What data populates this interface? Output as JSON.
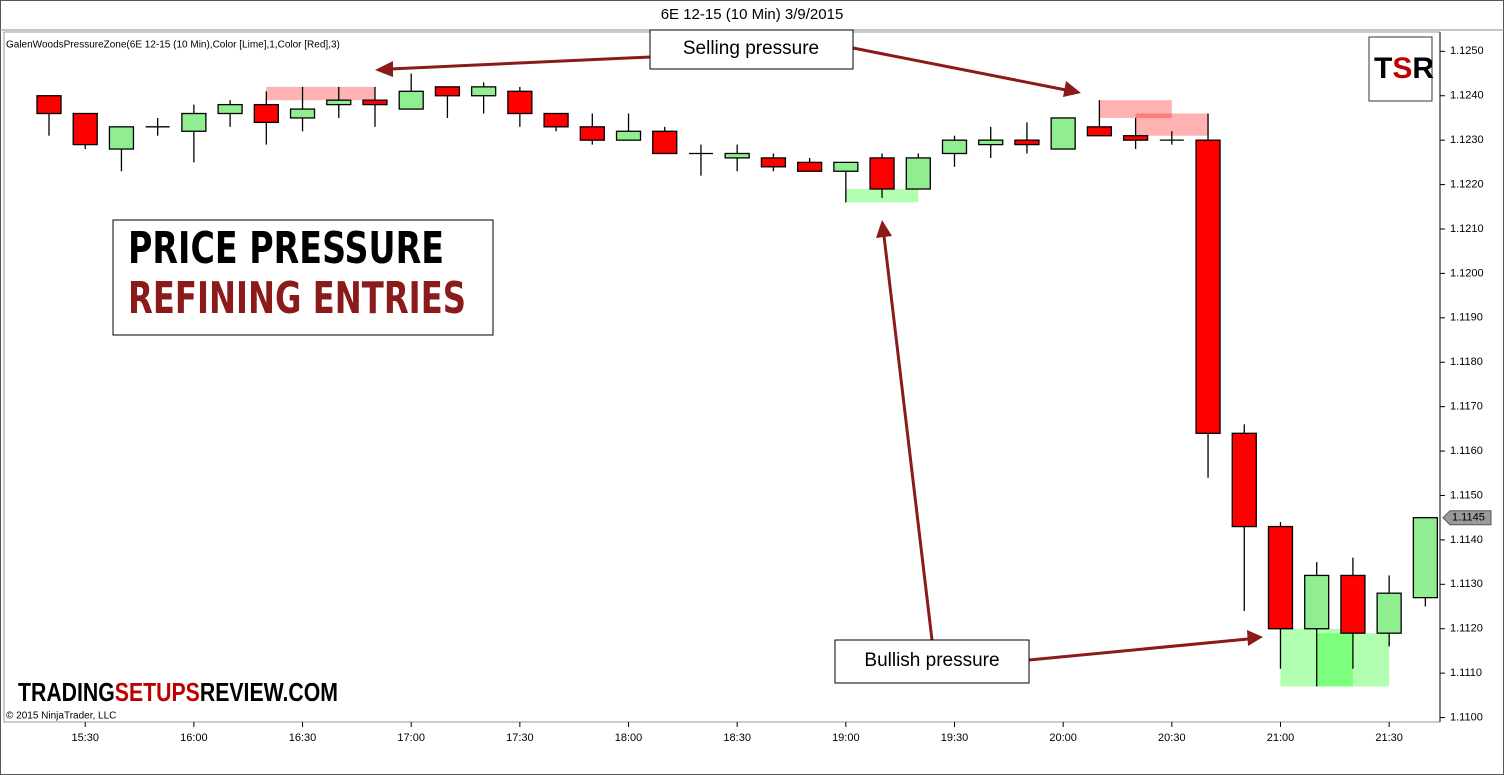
{
  "chart_data": {
    "type": "candlestick",
    "title": "6E 12-15 (10 Min)  3/9/2015",
    "indicator_label": "GalenWoodsPressureZone(6E 12-15 (10 Min),Color [Lime],1,Color [Red],3)",
    "annotations": [
      "Selling pressure",
      "Bullish pressure"
    ],
    "headline": [
      "PRICE PRESSURE",
      "REFINING ENTRIES"
    ],
    "logo": [
      "T",
      "S",
      "R"
    ],
    "site": [
      "TRADING",
      "SETUPS",
      "REVIEW.COM"
    ],
    "copyright": "© 2015 NinjaTrader, LLC",
    "categories": [
      null,
      "15:30",
      null,
      null,
      "16:00",
      null,
      null,
      "16:30",
      null,
      null,
      "17:00",
      null,
      null,
      "17:30",
      null,
      null,
      "18:00",
      null,
      null,
      "18:30",
      null,
      null,
      "19:00",
      null,
      null,
      "19:30",
      null,
      null,
      "20:00",
      null,
      null,
      "20:30",
      null,
      null,
      "21:00",
      null,
      null,
      "21:30",
      null
    ],
    "open": [
      1.124,
      1.1236,
      1.1228,
      1.1233,
      1.1232,
      1.1236,
      1.1238,
      1.1235,
      1.1238,
      1.1239,
      1.1237,
      1.1242,
      1.124,
      1.1241,
      1.1236,
      1.1233,
      1.123,
      1.1232,
      1.1227,
      1.1226,
      1.1226,
      1.1225,
      1.1223,
      1.1226,
      1.1219,
      1.1227,
      1.1229,
      1.123,
      1.1228,
      1.1233,
      1.1231,
      1.123,
      1.123,
      1.1164,
      1.1143,
      1.112,
      1.1132,
      1.1119,
      1.1127
    ],
    "high": [
      1.124,
      1.1236,
      1.1233,
      1.1235,
      1.1238,
      1.1239,
      1.1241,
      1.1242,
      1.1242,
      1.1242,
      1.1245,
      1.1242,
      1.1243,
      1.1242,
      1.1236,
      1.1236,
      1.1236,
      1.1233,
      1.1229,
      1.1229,
      1.1227,
      1.1226,
      1.1225,
      1.1227,
      1.1227,
      1.1231,
      1.1233,
      1.1234,
      1.1235,
      1.1239,
      1.1235,
      1.1232,
      1.1236,
      1.1166,
      1.1144,
      1.1135,
      1.1136,
      1.1132,
      1.1145
    ],
    "low": [
      1.1231,
      1.1228,
      1.1223,
      1.1231,
      1.1225,
      1.1233,
      1.1229,
      1.1232,
      1.1235,
      1.1233,
      1.1237,
      1.1235,
      1.1236,
      1.1233,
      1.1232,
      1.1229,
      1.123,
      1.1227,
      1.1222,
      1.1223,
      1.1223,
      1.1223,
      1.1216,
      1.1217,
      1.1219,
      1.1224,
      1.1226,
      1.1227,
      1.1228,
      1.1231,
      1.1228,
      1.1229,
      1.1154,
      1.1124,
      1.1111,
      1.1107,
      1.1111,
      1.1116,
      1.1125
    ],
    "close": [
      1.1236,
      1.1229,
      1.1233,
      1.1233,
      1.1236,
      1.1238,
      1.1234,
      1.1237,
      1.1239,
      1.1238,
      1.1241,
      1.124,
      1.1242,
      1.1236,
      1.1233,
      1.123,
      1.1232,
      1.1227,
      1.1227,
      1.1227,
      1.1224,
      1.1223,
      1.1225,
      1.1219,
      1.1226,
      1.123,
      1.123,
      1.1229,
      1.1235,
      1.1231,
      1.123,
      1.123,
      1.1164,
      1.1143,
      1.112,
      1.1132,
      1.1119,
      1.1128,
      1.1145
    ],
    "up_color": "#90ee90",
    "down_color": "#ff0000",
    "zones": [
      {
        "start": 6,
        "end": 9,
        "top": 1.1242,
        "bottom": 1.1239,
        "color": "#ff0000"
      },
      {
        "start": 29,
        "end": 31,
        "top": 1.1239,
        "bottom": 1.1235,
        "color": "#ff0000"
      },
      {
        "start": 30,
        "end": 32,
        "top": 1.1236,
        "bottom": 1.1231,
        "color": "#ff0000"
      },
      {
        "start": 22,
        "end": 24,
        "top": 1.1219,
        "bottom": 1.1216,
        "color": "#00ff00"
      },
      {
        "start": 34,
        "end": 36,
        "top": 1.112,
        "bottom": 1.1107,
        "color": "#00ff00"
      },
      {
        "start": 35,
        "end": 37,
        "top": 1.1119,
        "bottom": 1.1107,
        "color": "#00ff00"
      }
    ],
    "last_price": {
      "value": 1.1145,
      "label": "1.1145"
    },
    "ylim": [
      1.1099,
      1.1253
    ],
    "yticks": [
      {
        "value": 1.11,
        "label": "1.1100"
      },
      {
        "value": 1.111,
        "label": "1.1110"
      },
      {
        "value": 1.112,
        "label": "1.1120"
      },
      {
        "value": 1.113,
        "label": "1.1130"
      },
      {
        "value": 1.114,
        "label": "1.1140"
      },
      {
        "value": 1.115,
        "label": "1.1150"
      },
      {
        "value": 1.116,
        "label": "1.1160"
      },
      {
        "value": 1.117,
        "label": "1.1170"
      },
      {
        "value": 1.118,
        "label": "1.1180"
      },
      {
        "value": 1.119,
        "label": "1.1190"
      },
      {
        "value": 1.12,
        "label": "1.1200"
      },
      {
        "value": 1.121,
        "label": "1.1210"
      },
      {
        "value": 1.122,
        "label": "1.1220"
      },
      {
        "value": 1.123,
        "label": "1.1230"
      },
      {
        "value": 1.124,
        "label": "1.1240"
      },
      {
        "value": 1.125,
        "label": "1.1250"
      }
    ]
  }
}
